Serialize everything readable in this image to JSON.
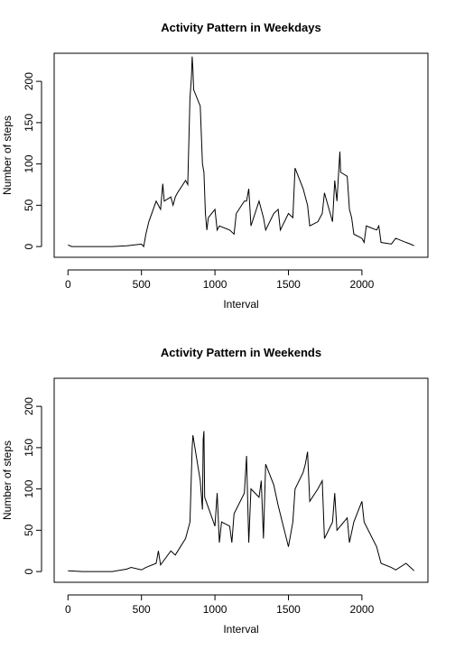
{
  "chart_data": [
    {
      "type": "line",
      "title": "Activity Pattern in Weekdays",
      "x_label": "Interval",
      "y_label": "Number of steps",
      "x": [
        0,
        25,
        50,
        100,
        200,
        300,
        400,
        500,
        515,
        530,
        550,
        600,
        615,
        630,
        645,
        655,
        700,
        715,
        730,
        745,
        800,
        815,
        830,
        840,
        845,
        850,
        855,
        900,
        915,
        925,
        935,
        945,
        955,
        1000,
        1015,
        1030,
        1100,
        1130,
        1145,
        1200,
        1215,
        1230,
        1245,
        1300,
        1330,
        1345,
        1400,
        1430,
        1445,
        1500,
        1530,
        1545,
        1600,
        1630,
        1645,
        1700,
        1730,
        1745,
        1800,
        1815,
        1830,
        1845,
        1850,
        1855,
        1900,
        1915,
        1930,
        1945,
        2000,
        2015,
        2030,
        2100,
        2115,
        2130,
        2200,
        2230,
        2300,
        2330,
        2355
      ],
      "series": [
        {
          "name": "Weekdays",
          "color": "#000000",
          "values": [
            2,
            0,
            0,
            0,
            0,
            0,
            1,
            3,
            0,
            15,
            30,
            55,
            50,
            45,
            76,
            55,
            60,
            50,
            60,
            65,
            80,
            75,
            180,
            205,
            230,
            215,
            190,
            170,
            100,
            90,
            40,
            20,
            35,
            45,
            20,
            25,
            20,
            15,
            40,
            55,
            55,
            70,
            25,
            55,
            35,
            20,
            40,
            45,
            20,
            40,
            35,
            95,
            70,
            50,
            25,
            30,
            40,
            65,
            30,
            80,
            55,
            100,
            115,
            90,
            85,
            45,
            35,
            15,
            10,
            5,
            25,
            20,
            25,
            5,
            3,
            10,
            5,
            3,
            1
          ]
        }
      ],
      "xlim": [
        -94,
        2449
      ],
      "ylim": [
        -13,
        234
      ],
      "xticks": [
        0,
        500,
        1000,
        1500,
        2000
      ],
      "yticks": [
        0,
        50,
        100,
        150,
        200
      ]
    },
    {
      "type": "line",
      "title": "Activity Pattern in Weekends",
      "x_label": "Interval",
      "y_label": "Number of steps",
      "x": [
        0,
        100,
        200,
        300,
        400,
        430,
        500,
        530,
        600,
        615,
        630,
        700,
        730,
        800,
        830,
        845,
        850,
        900,
        915,
        920,
        925,
        930,
        1000,
        1015,
        1030,
        1045,
        1100,
        1115,
        1130,
        1200,
        1215,
        1230,
        1245,
        1300,
        1315,
        1330,
        1345,
        1400,
        1430,
        1500,
        1530,
        1545,
        1600,
        1615,
        1630,
        1645,
        1700,
        1730,
        1745,
        1800,
        1815,
        1830,
        1900,
        1915,
        1945,
        2000,
        2015,
        2100,
        2130,
        2200,
        2230,
        2300,
        2330,
        2355
      ],
      "series": [
        {
          "name": "Weekends",
          "color": "#000000",
          "values": [
            1,
            0,
            0,
            0,
            3,
            5,
            2,
            5,
            10,
            25,
            8,
            25,
            20,
            40,
            60,
            150,
            165,
            110,
            75,
            160,
            170,
            90,
            55,
            95,
            35,
            60,
            55,
            35,
            70,
            95,
            140,
            35,
            100,
            90,
            110,
            40,
            130,
            105,
            80,
            30,
            60,
            100,
            120,
            130,
            145,
            85,
            100,
            110,
            40,
            60,
            95,
            50,
            65,
            35,
            60,
            85,
            60,
            30,
            10,
            5,
            2,
            10,
            5,
            1
          ]
        }
      ],
      "xlim": [
        -94,
        2449
      ],
      "ylim": [
        -13,
        234
      ],
      "xticks": [
        0,
        500,
        1000,
        1500,
        2000
      ],
      "yticks": [
        0,
        50,
        100,
        150,
        200
      ]
    }
  ]
}
